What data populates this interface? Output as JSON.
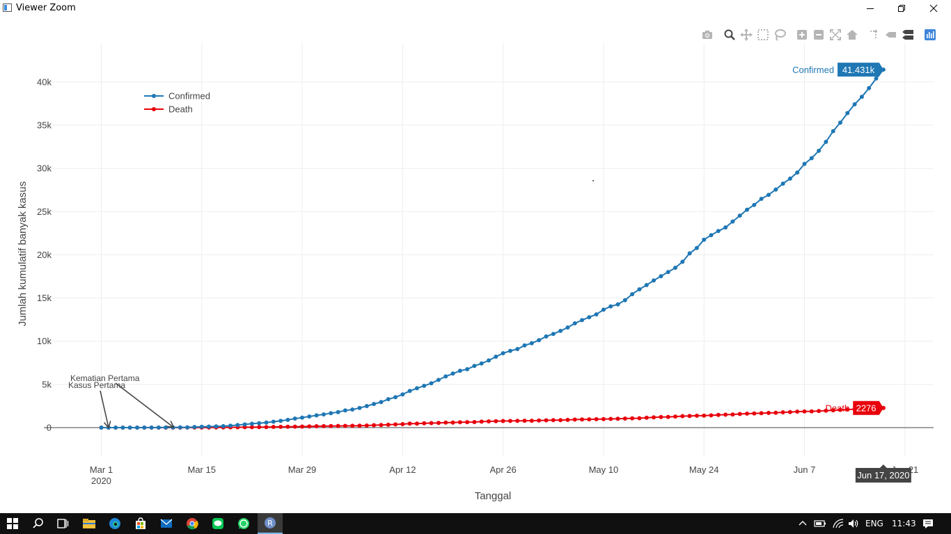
{
  "window": {
    "title": "Viewer Zoom"
  },
  "modebar": {
    "icons": [
      "camera-icon",
      "zoom-icon",
      "pan-icon",
      "box-select-icon",
      "lasso-select-icon",
      "zoom-in-icon",
      "zoom-out-icon",
      "autoscale-icon",
      "reset-axes-icon",
      "spike-lines-icon",
      "hover-closest-icon",
      "hover-compare-icon",
      "plotly-logo-icon"
    ]
  },
  "chart_data": {
    "type": "line",
    "xlabel": "Tanggal",
    "ylabel": "Jumlah kumulatif banyak kasus",
    "x_start": "2020-03-01",
    "x_end": "2020-06-17",
    "x_range": [
      "2020-02-22",
      "2020-06-25"
    ],
    "ylim": [
      -3300,
      44500
    ],
    "x_ticks": [
      {
        "date": "2020-03-01",
        "label": "Mar 1",
        "sublabel": "2020"
      },
      {
        "date": "2020-03-15",
        "label": "Mar 15"
      },
      {
        "date": "2020-03-29",
        "label": "Mar 29"
      },
      {
        "date": "2020-04-12",
        "label": "Apr 12"
      },
      {
        "date": "2020-04-26",
        "label": "Apr 26"
      },
      {
        "date": "2020-05-10",
        "label": "May 10"
      },
      {
        "date": "2020-05-24",
        "label": "May 24"
      },
      {
        "date": "2020-06-07",
        "label": "Jun 7"
      },
      {
        "date": "2020-06-21",
        "label": "Jun 21"
      }
    ],
    "y_ticks": [
      {
        "value": 0,
        "label": "0"
      },
      {
        "value": 5000,
        "label": "5k"
      },
      {
        "value": 10000,
        "label": "10k"
      },
      {
        "value": 15000,
        "label": "15k"
      },
      {
        "value": 20000,
        "label": "20k"
      },
      {
        "value": 25000,
        "label": "25k"
      },
      {
        "value": 30000,
        "label": "30k"
      },
      {
        "value": 35000,
        "label": "35k"
      },
      {
        "value": 40000,
        "label": "40k"
      }
    ],
    "grid": true,
    "legend_position": "top-left",
    "series": [
      {
        "name": "Confirmed",
        "color": "#1f77b4",
        "values": [
          0,
          2,
          2,
          2,
          2,
          2,
          4,
          4,
          6,
          19,
          27,
          34,
          34,
          69,
          96,
          117,
          134,
          172,
          227,
          309,
          369,
          450,
          514,
          579,
          686,
          790,
          893,
          1046,
          1155,
          1285,
          1414,
          1528,
          1677,
          1790,
          1986,
          2092,
          2273,
          2491,
          2738,
          2956,
          3293,
          3512,
          3842,
          4241,
          4557,
          4839,
          5136,
          5516,
          5923,
          6248,
          6575,
          6760,
          7135,
          7418,
          7775,
          8211,
          8607,
          8882,
          9096,
          9511,
          9771,
          10118,
          10551,
          10843,
          11192,
          11587,
          12071,
          12438,
          12776,
          13112,
          13645,
          14032,
          14265,
          14749,
          15438,
          16006,
          16496,
          17025,
          17514,
          18010,
          18496,
          19189,
          20162,
          20796,
          21745,
          22271,
          22750,
          23165,
          23851,
          24538,
          25216,
          25773,
          26473,
          26940,
          27549,
          28233,
          28818,
          29521,
          30514,
          31186,
          32033,
          33076,
          34316,
          35295,
          36406,
          37420,
          38277,
          39294,
          40400,
          41431
        ],
        "end_label": "41.431k"
      },
      {
        "name": "Death",
        "color": "#e8000b",
        "values": [
          0,
          0,
          0,
          0,
          0,
          0,
          0,
          0,
          0,
          0,
          1,
          2,
          4,
          5,
          5,
          5,
          19,
          25,
          32,
          38,
          48,
          49,
          55,
          58,
          78,
          87,
          102,
          114,
          122,
          136,
          157,
          170,
          181,
          191,
          198,
          209,
          221,
          240,
          280,
          306,
          327,
          373,
          399,
          459,
          469,
          496,
          520,
          535,
          582,
          586,
          616,
          635,
          647,
          689,
          720,
          743,
          765,
          773,
          784,
          792,
          800,
          831,
          845,
          864,
          872,
          895,
          930,
          943,
          959,
          973,
          991,
          1007,
          1028,
          1043,
          1076,
          1089,
          1148,
          1191,
          1221,
          1242,
          1278,
          1326,
          1351,
          1372,
          1391,
          1418,
          1473,
          1496,
          1520,
          1573,
          1613,
          1641,
          1663,
          1698,
          1721,
          1770,
          1801,
          1851,
          1871,
          1883,
          1923,
          1959,
          2000,
          2048,
          2091,
          2134,
          2198,
          2231,
          2256,
          2276
        ],
        "end_label": "2276"
      }
    ],
    "annotations": [
      {
        "text": "Kematian Pertama",
        "date": "2020-03-11"
      },
      {
        "text": "Kasus Pertama",
        "date": "2020-03-02"
      }
    ],
    "hover_label": "Jun 17, 2020"
  },
  "taskbar": {
    "language": "ENG",
    "time": "11:43",
    "items": [
      "start-icon",
      "search-icon",
      "task-view-icon",
      "file-explorer-icon",
      "edge-icon",
      "store-icon",
      "mail-icon",
      "chrome-icon",
      "line-app-icon",
      "whatsapp-icon",
      "r-app-icon"
    ]
  }
}
